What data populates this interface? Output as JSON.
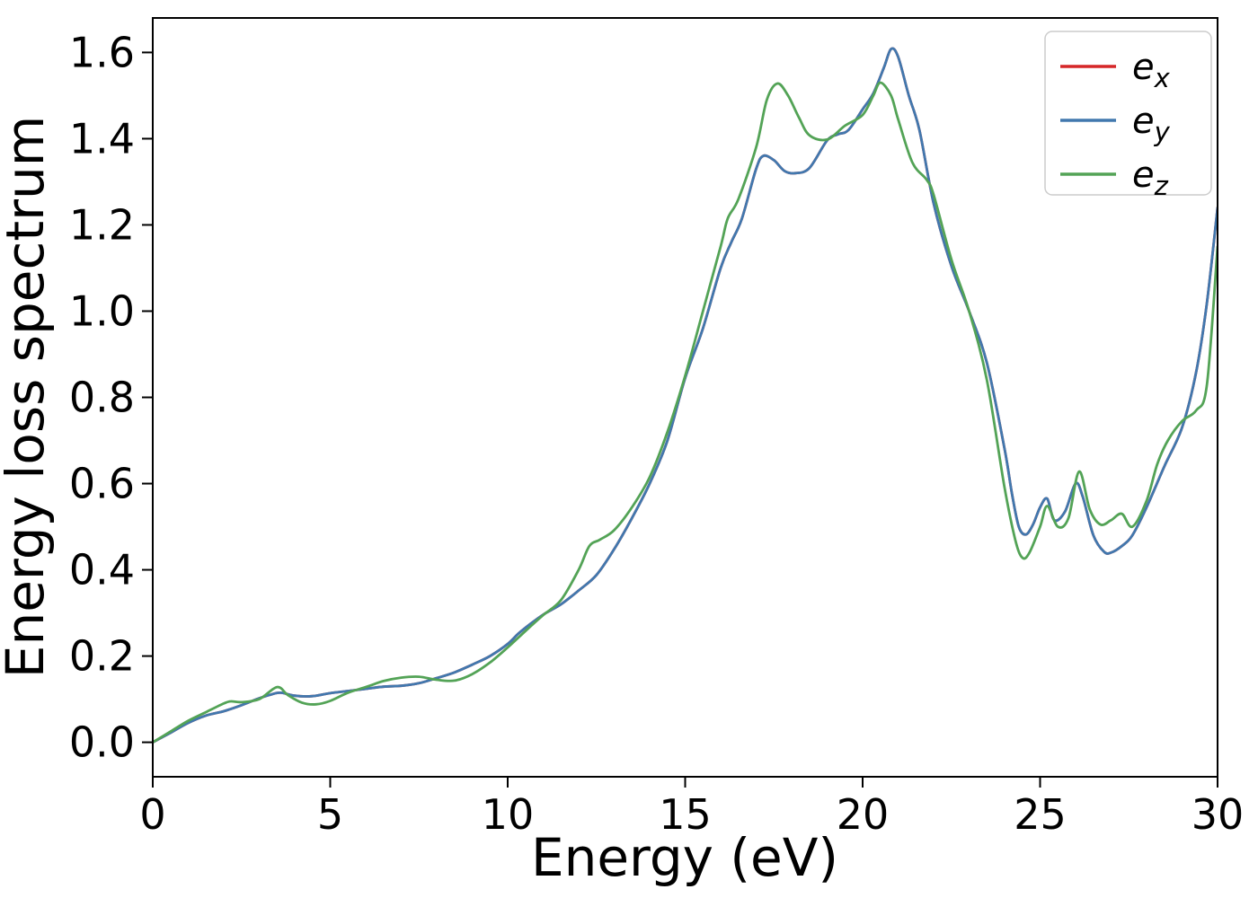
{
  "figure": {
    "background": "#ffffff"
  },
  "legend": {
    "position": "upper right",
    "items": [
      {
        "base": "e",
        "sub": "x"
      },
      {
        "base": "e",
        "sub": "y"
      },
      {
        "base": "e",
        "sub": "z"
      }
    ]
  },
  "chart_data": {
    "type": "line",
    "title": "",
    "xlabel": "Energy (eV)",
    "ylabel": "Energy loss spectrum",
    "xlim": [
      0,
      30
    ],
    "ylim": [
      -0.08,
      1.68
    ],
    "xticks": [
      0,
      5,
      10,
      15,
      20,
      25,
      30
    ],
    "xtick_labels": [
      "0",
      "5",
      "10",
      "15",
      "20",
      "25",
      "30"
    ],
    "yticks": [
      0.0,
      0.2,
      0.4,
      0.6,
      0.8,
      1.0,
      1.2,
      1.4,
      1.6
    ],
    "ytick_labels": [
      "0.0",
      "0.2",
      "0.4",
      "0.6",
      "0.8",
      "1.0",
      "1.2",
      "1.4",
      "1.6"
    ],
    "grid": false,
    "legend_position": "upper right",
    "series": [
      {
        "name": "e_x",
        "color": "#d62728",
        "note": "coincides with e_y and is hidden beneath it",
        "x": [
          0,
          0.5,
          1,
          1.5,
          2,
          2.5,
          3,
          3.3,
          3.6,
          4,
          4.5,
          5,
          5.5,
          6,
          6.5,
          7,
          7.5,
          8,
          8.5,
          9,
          9.5,
          10,
          10.3,
          10.6,
          11,
          11.5,
          12,
          12.5,
          13,
          13.5,
          14,
          14.5,
          15,
          15.5,
          16,
          16.3,
          16.6,
          17,
          17.2,
          17.5,
          17.8,
          18.1,
          18.5,
          19,
          19.3,
          19.6,
          20,
          20.3,
          20.6,
          20.8,
          21,
          21.3,
          21.6,
          22,
          22.5,
          23,
          23.5,
          24,
          24.2,
          24.4,
          24.6,
          24.8,
          25,
          25.2,
          25.4,
          25.7,
          26,
          26.2,
          26.5,
          26.8,
          27,
          27.3,
          27.6,
          28,
          28.5,
          29,
          29.4,
          29.7,
          30
        ],
        "y": [
          0,
          0.022,
          0.045,
          0.062,
          0.072,
          0.086,
          0.102,
          0.11,
          0.115,
          0.108,
          0.107,
          0.114,
          0.119,
          0.124,
          0.129,
          0.131,
          0.137,
          0.149,
          0.162,
          0.18,
          0.2,
          0.228,
          0.252,
          0.272,
          0.296,
          0.32,
          0.352,
          0.388,
          0.448,
          0.52,
          0.6,
          0.7,
          0.845,
          0.96,
          1.1,
          1.16,
          1.215,
          1.33,
          1.36,
          1.35,
          1.325,
          1.32,
          1.332,
          1.396,
          1.41,
          1.42,
          1.468,
          1.505,
          1.565,
          1.608,
          1.59,
          1.5,
          1.42,
          1.25,
          1.105,
          1.0,
          0.88,
          0.68,
          0.58,
          0.5,
          0.482,
          0.505,
          0.545,
          0.565,
          0.515,
          0.535,
          0.6,
          0.57,
          0.48,
          0.442,
          0.44,
          0.455,
          0.48,
          0.545,
          0.64,
          0.73,
          0.86,
          1.02,
          1.24
        ]
      },
      {
        "name": "e_y",
        "color": "#4178ae",
        "x": [
          0,
          0.5,
          1,
          1.5,
          2,
          2.5,
          3,
          3.3,
          3.6,
          4,
          4.5,
          5,
          5.5,
          6,
          6.5,
          7,
          7.5,
          8,
          8.5,
          9,
          9.5,
          10,
          10.3,
          10.6,
          11,
          11.5,
          12,
          12.5,
          13,
          13.5,
          14,
          14.5,
          15,
          15.5,
          16,
          16.3,
          16.6,
          17,
          17.2,
          17.5,
          17.8,
          18.1,
          18.5,
          19,
          19.3,
          19.6,
          20,
          20.3,
          20.6,
          20.8,
          21,
          21.3,
          21.6,
          22,
          22.5,
          23,
          23.5,
          24,
          24.2,
          24.4,
          24.6,
          24.8,
          25,
          25.2,
          25.4,
          25.7,
          26,
          26.2,
          26.5,
          26.8,
          27,
          27.3,
          27.6,
          28,
          28.5,
          29,
          29.4,
          29.7,
          30
        ],
        "y": [
          0,
          0.022,
          0.045,
          0.062,
          0.072,
          0.086,
          0.102,
          0.11,
          0.115,
          0.108,
          0.107,
          0.114,
          0.119,
          0.124,
          0.129,
          0.131,
          0.137,
          0.149,
          0.162,
          0.18,
          0.2,
          0.228,
          0.252,
          0.272,
          0.296,
          0.32,
          0.352,
          0.388,
          0.448,
          0.52,
          0.6,
          0.7,
          0.845,
          0.96,
          1.1,
          1.16,
          1.215,
          1.33,
          1.36,
          1.35,
          1.325,
          1.32,
          1.332,
          1.396,
          1.41,
          1.42,
          1.468,
          1.505,
          1.565,
          1.608,
          1.59,
          1.5,
          1.42,
          1.25,
          1.105,
          1.0,
          0.88,
          0.68,
          0.58,
          0.5,
          0.482,
          0.505,
          0.545,
          0.565,
          0.515,
          0.535,
          0.6,
          0.57,
          0.48,
          0.442,
          0.44,
          0.455,
          0.48,
          0.545,
          0.64,
          0.73,
          0.86,
          1.02,
          1.24
        ]
      },
      {
        "name": "e_z",
        "color": "#53a356",
        "x": [
          0,
          0.5,
          1,
          1.5,
          2,
          2.2,
          2.5,
          3,
          3.5,
          3.8,
          4.2,
          4.6,
          5,
          5.5,
          6,
          6.5,
          7,
          7.5,
          8,
          8.5,
          9,
          9.5,
          10,
          10.5,
          11,
          11.5,
          12,
          12.3,
          12.6,
          13,
          13.5,
          14,
          14.5,
          15,
          15.5,
          16,
          16.2,
          16.5,
          17,
          17.3,
          17.6,
          17.9,
          18.2,
          18.5,
          19,
          19.5,
          20,
          20.3,
          20.5,
          20.8,
          21,
          21.4,
          21.8,
          22,
          22.5,
          23,
          23.5,
          24,
          24.3,
          24.5,
          24.7,
          25,
          25.2,
          25.5,
          25.8,
          26.1,
          26.4,
          26.7,
          27,
          27.3,
          27.6,
          28,
          28.3,
          28.6,
          29,
          29.4,
          29.7,
          30
        ],
        "y": [
          0,
          0.025,
          0.05,
          0.07,
          0.09,
          0.095,
          0.093,
          0.1,
          0.128,
          0.11,
          0.092,
          0.088,
          0.096,
          0.115,
          0.128,
          0.142,
          0.15,
          0.152,
          0.145,
          0.143,
          0.158,
          0.185,
          0.22,
          0.258,
          0.295,
          0.33,
          0.4,
          0.455,
          0.47,
          0.492,
          0.545,
          0.615,
          0.72,
          0.85,
          1.0,
          1.15,
          1.215,
          1.26,
          1.38,
          1.49,
          1.528,
          1.5,
          1.45,
          1.408,
          1.398,
          1.43,
          1.455,
          1.5,
          1.53,
          1.5,
          1.445,
          1.345,
          1.305,
          1.27,
          1.12,
          1.0,
          0.84,
          0.59,
          0.47,
          0.428,
          0.44,
          0.5,
          0.548,
          0.5,
          0.52,
          0.628,
          0.54,
          0.505,
          0.515,
          0.53,
          0.5,
          0.56,
          0.645,
          0.7,
          0.745,
          0.77,
          0.83,
          1.15
        ]
      }
    ]
  }
}
